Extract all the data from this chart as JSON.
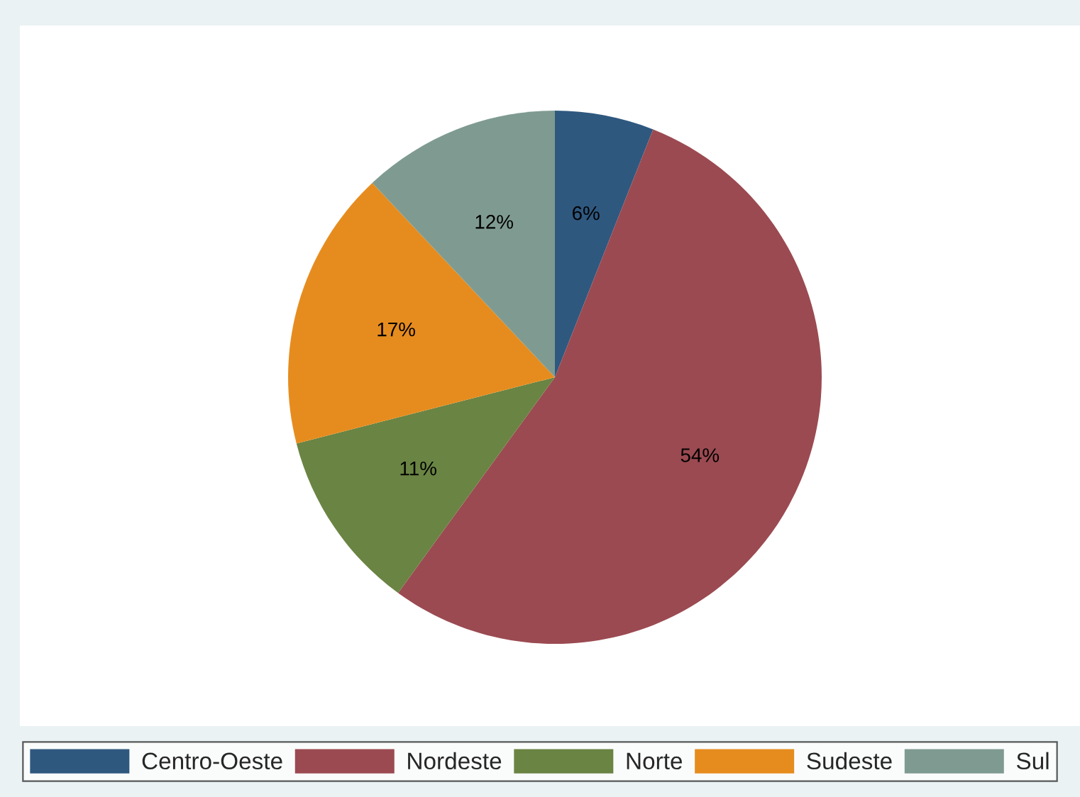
{
  "chart_data": {
    "type": "pie",
    "categories": [
      "Centro-Oeste",
      "Nordeste",
      "Norte",
      "Sudeste",
      "Sul"
    ],
    "values": [
      6,
      54,
      11,
      17,
      12
    ],
    "colors": [
      "#2f587f",
      "#9b4a51",
      "#6a8443",
      "#e68c1e",
      "#7f9b91"
    ],
    "value_labels": [
      "6%",
      "54%",
      "11%",
      "17%",
      "12%"
    ],
    "legend": "bottom"
  }
}
